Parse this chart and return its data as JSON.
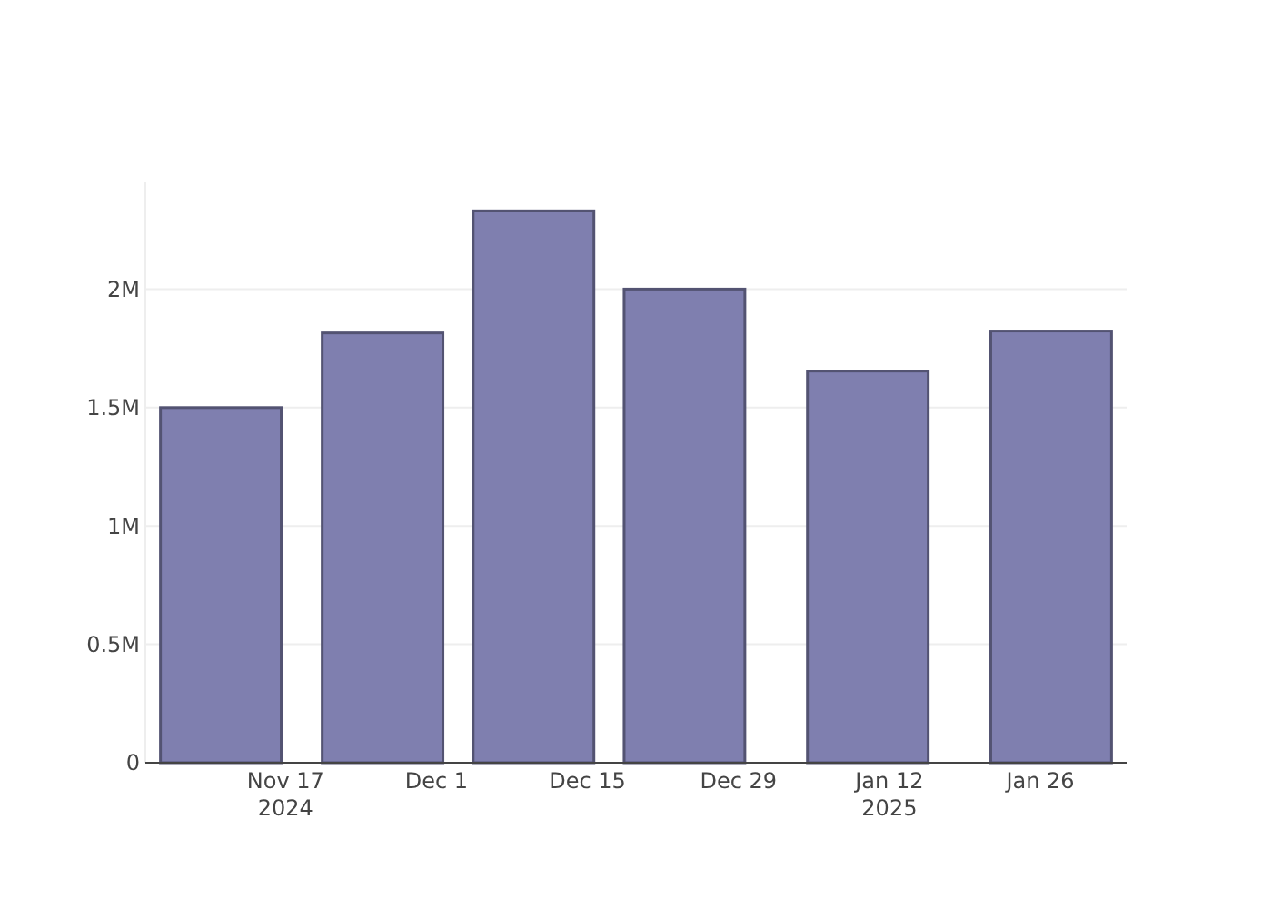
{
  "chart_data": {
    "type": "bar",
    "x": [
      "2024-11-11",
      "2024-11-26",
      "2024-12-10",
      "2024-12-24",
      "2025-01-10",
      "2025-01-27"
    ],
    "values": [
      1500000,
      1815000,
      2330000,
      2000000,
      1654000,
      1823000
    ],
    "color": "#7f7faf",
    "xlim": [
      "2024-11-04",
      "2025-02-03"
    ],
    "xticks": [
      {
        "value": "2024-11-17",
        "label": "Nov 17\n2024"
      },
      {
        "value": "2024-12-01",
        "label": "Dec 1"
      },
      {
        "value": "2024-12-15",
        "label": "Dec 15"
      },
      {
        "value": "2024-12-29",
        "label": "Dec 29"
      },
      {
        "value": "2025-01-12",
        "label": "Jan 12\n2025"
      },
      {
        "value": "2025-01-26",
        "label": "Jan 26"
      }
    ],
    "ylim": [
      0,
      2454000
    ],
    "yticks": [
      0,
      {
        "value": 500000,
        "label": "0.5M"
      },
      {
        "value": 1000000,
        "label": "1M"
      },
      {
        "value": 1500000,
        "label": "1.5M"
      },
      {
        "value": 2000000,
        "label": "2M"
      }
    ],
    "grid": "y"
  }
}
